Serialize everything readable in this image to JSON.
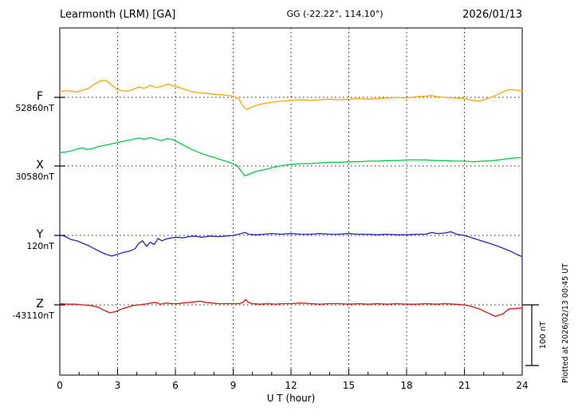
{
  "header": {
    "station": "Learmonth (LRM)  [GA]",
    "coords": "GG (-22.22°, 114.10°)",
    "date": "2026/01/13"
  },
  "footer": {
    "xlabel": "U T (hour)"
  },
  "right_margin": {
    "scale_label": "100 nT",
    "plotted_at": "Plotted at 2026/02/13 00:45 UT"
  },
  "chart_data": {
    "type": "line",
    "title": "Learmonth (LRM) [GA] magnetogram 2026/01/13",
    "xlabel": "U T (hour)",
    "ylabel": "",
    "x_range": [
      0,
      24
    ],
    "x_ticks": [
      0,
      3,
      6,
      9,
      12,
      15,
      18,
      21,
      24
    ],
    "grid_hours": [
      3,
      6,
      9,
      12,
      15,
      18,
      21
    ],
    "grid": true,
    "scale_bar_nT": 100,
    "series": [
      {
        "name": "F",
        "baseline_label": "52860nT",
        "baseline_nT": 52860,
        "color": "#FFA500",
        "points": [
          [
            0,
            9
          ],
          [
            0.3,
            11
          ],
          [
            0.6,
            10
          ],
          [
            0.9,
            9
          ],
          [
            1.2,
            12
          ],
          [
            1.5,
            15
          ],
          [
            1.8,
            22
          ],
          [
            2.1,
            27
          ],
          [
            2.4,
            28
          ],
          [
            2.7,
            20
          ],
          [
            3.0,
            13
          ],
          [
            3.2,
            11
          ],
          [
            3.5,
            10
          ],
          [
            3.8,
            13
          ],
          [
            4.1,
            17
          ],
          [
            4.4,
            15
          ],
          [
            4.7,
            20
          ],
          [
            5.0,
            16
          ],
          [
            5.3,
            18
          ],
          [
            5.6,
            22
          ],
          [
            5.9,
            19
          ],
          [
            6.2,
            16
          ],
          [
            6.5,
            13
          ],
          [
            6.8,
            10
          ],
          [
            7.1,
            8
          ],
          [
            7.5,
            7
          ],
          [
            8.0,
            5
          ],
          [
            8.5,
            4
          ],
          [
            9.0,
            2
          ],
          [
            9.3,
            -3
          ],
          [
            9.5,
            -14
          ],
          [
            9.7,
            -20
          ],
          [
            9.9,
            -17
          ],
          [
            10.2,
            -13
          ],
          [
            10.6,
            -10
          ],
          [
            11.0,
            -8
          ],
          [
            11.5,
            -6
          ],
          [
            12.0,
            -5
          ],
          [
            12.5,
            -4
          ],
          [
            13.0,
            -5
          ],
          [
            13.5,
            -4
          ],
          [
            14.0,
            -3
          ],
          [
            14.5,
            -4
          ],
          [
            15.0,
            -3
          ],
          [
            15.5,
            -2
          ],
          [
            16.0,
            -3
          ],
          [
            16.5,
            -2
          ],
          [
            17.0,
            -1
          ],
          [
            17.5,
            0
          ],
          [
            18.0,
            -1
          ],
          [
            18.5,
            1
          ],
          [
            19.0,
            2
          ],
          [
            19.3,
            3
          ],
          [
            19.6,
            1
          ],
          [
            20.0,
            0
          ],
          [
            20.5,
            -1
          ],
          [
            21.0,
            -2
          ],
          [
            21.4,
            -5
          ],
          [
            21.8,
            -6
          ],
          [
            22.2,
            -2
          ],
          [
            22.6,
            3
          ],
          [
            23.0,
            9
          ],
          [
            23.3,
            13
          ],
          [
            23.6,
            12
          ],
          [
            24,
            11
          ]
        ]
      },
      {
        "name": "X",
        "baseline_label": "30580nT",
        "baseline_nT": 30580,
        "color": "#00CC44",
        "points": [
          [
            0,
            22
          ],
          [
            0.3,
            23
          ],
          [
            0.6,
            25
          ],
          [
            0.9,
            28
          ],
          [
            1.2,
            30
          ],
          [
            1.4,
            27
          ],
          [
            1.7,
            29
          ],
          [
            2.0,
            32
          ],
          [
            2.3,
            34
          ],
          [
            2.6,
            36
          ],
          [
            2.9,
            38
          ],
          [
            3.2,
            40
          ],
          [
            3.5,
            42
          ],
          [
            3.8,
            44
          ],
          [
            4.1,
            46
          ],
          [
            4.4,
            44
          ],
          [
            4.7,
            47
          ],
          [
            5.0,
            44
          ],
          [
            5.3,
            42
          ],
          [
            5.6,
            45
          ],
          [
            5.9,
            43
          ],
          [
            6.2,
            38
          ],
          [
            6.5,
            33
          ],
          [
            6.8,
            28
          ],
          [
            7.1,
            24
          ],
          [
            7.4,
            20
          ],
          [
            7.7,
            17
          ],
          [
            8.0,
            14
          ],
          [
            8.3,
            11
          ],
          [
            8.6,
            8
          ],
          [
            8.9,
            5
          ],
          [
            9.2,
            1
          ],
          [
            9.4,
            -8
          ],
          [
            9.6,
            -16
          ],
          [
            9.8,
            -14
          ],
          [
            10.0,
            -11
          ],
          [
            10.3,
            -8
          ],
          [
            10.6,
            -6
          ],
          [
            11.0,
            -3
          ],
          [
            11.4,
            0
          ],
          [
            11.8,
            2
          ],
          [
            12.2,
            3
          ],
          [
            12.6,
            4
          ],
          [
            13.0,
            4
          ],
          [
            13.5,
            5
          ],
          [
            14.0,
            6
          ],
          [
            14.5,
            6
          ],
          [
            15.0,
            7
          ],
          [
            15.5,
            7
          ],
          [
            16.0,
            8
          ],
          [
            16.5,
            8
          ],
          [
            17.0,
            9
          ],
          [
            17.5,
            9
          ],
          [
            18.0,
            10
          ],
          [
            18.5,
            10
          ],
          [
            19.0,
            10
          ],
          [
            19.5,
            9
          ],
          [
            20.0,
            9
          ],
          [
            20.5,
            8
          ],
          [
            21.0,
            8
          ],
          [
            21.5,
            7
          ],
          [
            22.0,
            8
          ],
          [
            22.5,
            9
          ],
          [
            23.0,
            11
          ],
          [
            23.5,
            13
          ],
          [
            24,
            14
          ]
        ]
      },
      {
        "name": "Y",
        "baseline_label": "120nT",
        "baseline_nT": 120,
        "color": "#2222CC",
        "points": [
          [
            0,
            1
          ],
          [
            0.3,
            -2
          ],
          [
            0.6,
            -7
          ],
          [
            0.9,
            -9
          ],
          [
            1.2,
            -13
          ],
          [
            1.5,
            -17
          ],
          [
            1.8,
            -22
          ],
          [
            2.1,
            -27
          ],
          [
            2.4,
            -31
          ],
          [
            2.7,
            -34
          ],
          [
            3.0,
            -31
          ],
          [
            3.3,
            -28
          ],
          [
            3.6,
            -26
          ],
          [
            3.9,
            -22
          ],
          [
            4.1,
            -13
          ],
          [
            4.3,
            -9
          ],
          [
            4.5,
            -18
          ],
          [
            4.7,
            -11
          ],
          [
            4.9,
            -15
          ],
          [
            5.1,
            -5
          ],
          [
            5.3,
            -9
          ],
          [
            5.5,
            -6
          ],
          [
            5.8,
            -4
          ],
          [
            6.1,
            -3
          ],
          [
            6.4,
            -4
          ],
          [
            6.7,
            -2
          ],
          [
            7.0,
            -1
          ],
          [
            7.4,
            -3
          ],
          [
            7.8,
            -1
          ],
          [
            8.2,
            -2
          ],
          [
            8.6,
            -1
          ],
          [
            9.0,
            0
          ],
          [
            9.4,
            3
          ],
          [
            9.6,
            5
          ],
          [
            9.8,
            2
          ],
          [
            10.2,
            1
          ],
          [
            10.6,
            2
          ],
          [
            11.0,
            3
          ],
          [
            11.5,
            2
          ],
          [
            12.0,
            3
          ],
          [
            12.5,
            2
          ],
          [
            13.0,
            2
          ],
          [
            13.5,
            3
          ],
          [
            14.0,
            2
          ],
          [
            14.5,
            2
          ],
          [
            15.0,
            3
          ],
          [
            15.5,
            2
          ],
          [
            16.0,
            2
          ],
          [
            16.5,
            1
          ],
          [
            17.0,
            2
          ],
          [
            17.5,
            1
          ],
          [
            18.0,
            1
          ],
          [
            18.5,
            2
          ],
          [
            19.0,
            2
          ],
          [
            19.3,
            5
          ],
          [
            19.6,
            3
          ],
          [
            20.0,
            4
          ],
          [
            20.3,
            6
          ],
          [
            20.6,
            2
          ],
          [
            21.0,
            0
          ],
          [
            21.4,
            -4
          ],
          [
            21.8,
            -8
          ],
          [
            22.2,
            -12
          ],
          [
            22.6,
            -16
          ],
          [
            23.0,
            -21
          ],
          [
            23.4,
            -26
          ],
          [
            23.7,
            -31
          ],
          [
            24,
            -35
          ]
        ]
      },
      {
        "name": "Z",
        "baseline_label": "-43110nT",
        "baseline_nT": -43110,
        "color": "#E01010",
        "points": [
          [
            0,
            2
          ],
          [
            0.4,
            1
          ],
          [
            0.8,
            1
          ],
          [
            1.2,
            0
          ],
          [
            1.6,
            -1
          ],
          [
            2.0,
            -4
          ],
          [
            2.3,
            -9
          ],
          [
            2.6,
            -13
          ],
          [
            2.9,
            -11
          ],
          [
            3.2,
            -7
          ],
          [
            3.5,
            -4
          ],
          [
            3.8,
            -1
          ],
          [
            4.1,
            0
          ],
          [
            4.4,
            1
          ],
          [
            4.7,
            3
          ],
          [
            5.0,
            4
          ],
          [
            5.2,
            1
          ],
          [
            5.5,
            3
          ],
          [
            5.8,
            2
          ],
          [
            6.1,
            2
          ],
          [
            6.4,
            3
          ],
          [
            6.7,
            4
          ],
          [
            7.0,
            5
          ],
          [
            7.3,
            6
          ],
          [
            7.6,
            4
          ],
          [
            7.9,
            3
          ],
          [
            8.2,
            2
          ],
          [
            8.6,
            2
          ],
          [
            9.0,
            2
          ],
          [
            9.3,
            2
          ],
          [
            9.5,
            4
          ],
          [
            9.65,
            9
          ],
          [
            9.8,
            4
          ],
          [
            10.0,
            2
          ],
          [
            10.4,
            1
          ],
          [
            10.8,
            2
          ],
          [
            11.2,
            1
          ],
          [
            11.6,
            2
          ],
          [
            12.0,
            2
          ],
          [
            12.5,
            3
          ],
          [
            13.0,
            2
          ],
          [
            13.5,
            1
          ],
          [
            14.0,
            2
          ],
          [
            14.5,
            2
          ],
          [
            15.0,
            1
          ],
          [
            15.5,
            2
          ],
          [
            16.0,
            1
          ],
          [
            16.5,
            2
          ],
          [
            17.0,
            1
          ],
          [
            17.5,
            2
          ],
          [
            18.0,
            1
          ],
          [
            18.5,
            1
          ],
          [
            19.0,
            2
          ],
          [
            19.5,
            1
          ],
          [
            20.0,
            2
          ],
          [
            20.5,
            1
          ],
          [
            21.0,
            0
          ],
          [
            21.4,
            -3
          ],
          [
            21.8,
            -7
          ],
          [
            22.2,
            -13
          ],
          [
            22.6,
            -19
          ],
          [
            23.0,
            -15
          ],
          [
            23.3,
            -7
          ],
          [
            23.6,
            -6
          ],
          [
            24,
            -5
          ]
        ]
      }
    ]
  }
}
